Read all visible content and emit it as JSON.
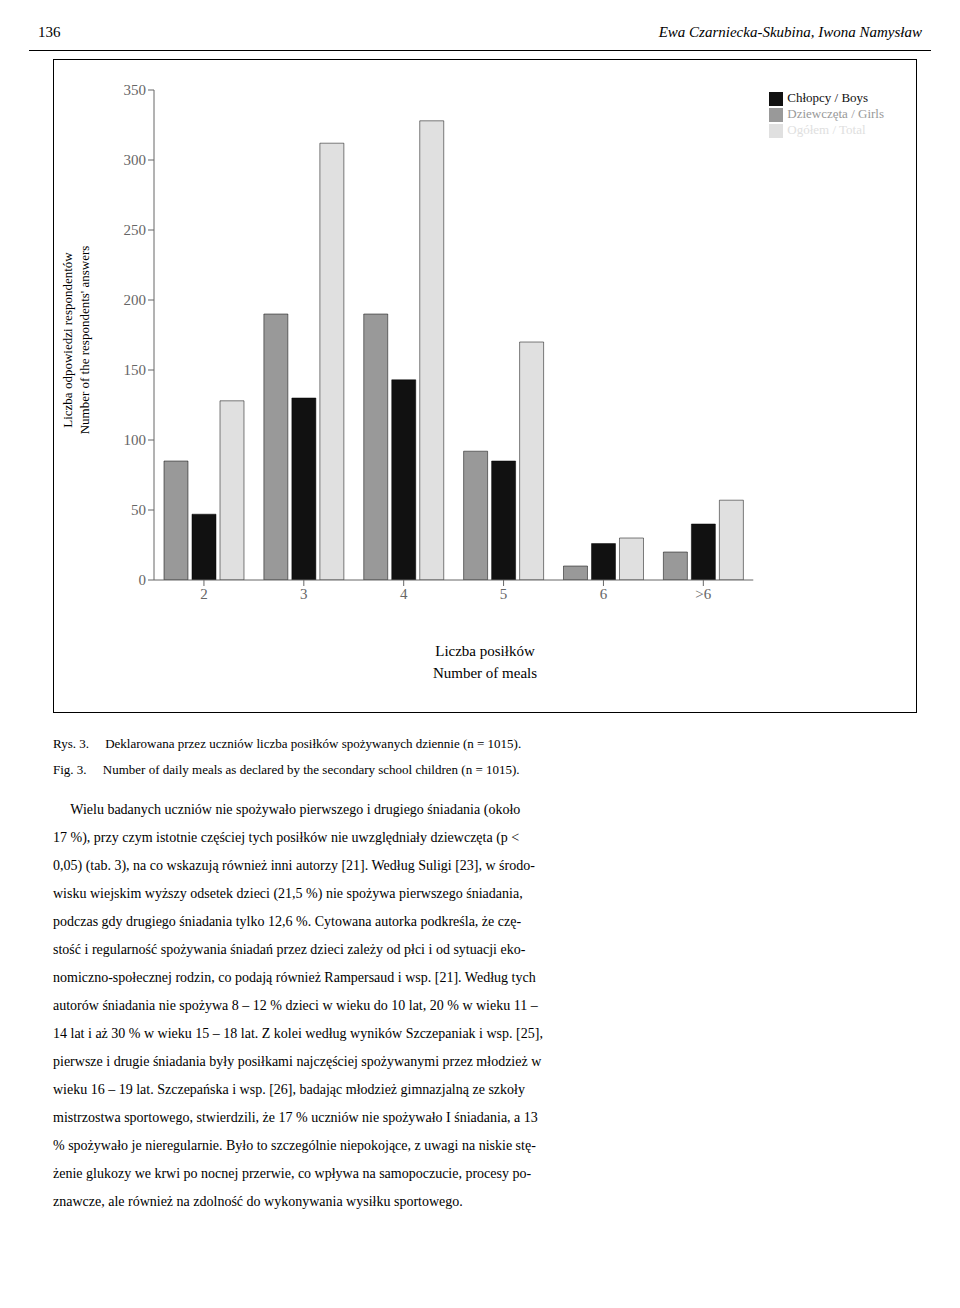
{
  "chart_data": {
    "type": "bar",
    "title": "Rys. 3.     Deklarowana przez uczniów liczba posiłków spożywanych dziennie (n = 1015).",
    "subtitle": "Fig. 3.     Number of daily meals as declared by the secondary school children (n = 1015).",
    "xlabel": [
      "Liczba posiłków",
      "Number of meals"
    ],
    "ylabel": [
      "Liczba odpowiedzi respondentów",
      "Number of the respondents' answers"
    ],
    "categories": [
      "2",
      "3",
      "4",
      "5",
      "6",
      ">6"
    ],
    "series": [
      {
        "name": "Dziewczęta / Girls",
        "color": "#999999",
        "values": [
          85,
          190,
          190,
          92,
          10,
          20
        ]
      },
      {
        "name": "Chłopcy / Boys",
        "color": "#111111",
        "values": [
          47,
          130,
          143,
          85,
          26,
          40
        ]
      },
      {
        "name": "Ogółem / Total",
        "color": "#e0e0e0",
        "values": [
          128,
          312,
          328,
          170,
          30,
          57
        ]
      }
    ],
    "ylim": [
      0,
      350
    ],
    "yticks": [
      0,
      50,
      100,
      150,
      200,
      250,
      300,
      350
    ],
    "grid": false,
    "legend": "upper right",
    "annotations": {
      "header": [
        "136",
        "Ewa Czarniecka-Skubina, Iwona Namysław"
      ],
      "body": [
        "     Wielu badanych uczniów nie spożywało pierwszego i drugiego śniadania (około",
        "17 %), przy czym istotnie częściej tych posiłków nie uwzględniały dziewczęta (p <",
        "0,05) (tab. 3), na co wskazują również inni autorzy [21]. Według Suligi [23], w środo-",
        "wisku wiejskim wyższy odsetek dzieci (21,5 %) nie spożywa pierwszego śniadania,",
        "podczas gdy drugiego śniadania tylko 12,6 %. Cytowana autorka podkreśla, że czę-",
        "stość i regularność spożywania śniadań przez dzieci zależy od płci i od sytuacji eko-",
        "nomiczno-społecznej rodzin, co podają również Rampersaud i wsp. [21]. Według tych",
        "autorów śniadania nie spożywa 8 – 12 % dzieci w wieku do 10 lat, 20 % w wieku 11 –",
        "14 lat i aż 30 % w wieku 15 – 18 lat. Z kolei według wyników Szczepaniak i wsp. [25],",
        "pierwsze i drugie śniadania były posiłkami najczęściej spożywanymi przez młodzież w",
        "wieku 16 – 19 lat. Szczepańska i wsp. [26], badając młodzież gimnazjalną ze szkoły",
        "mistrzostwa sportowego, stwierdzili, że 17 % uczniów nie spożywało I śniadania, a 13",
        "% spożywało je nieregularnie. Było to szczególnie niepokojące, z uwagi na niskie stę-",
        "żenie glukozy we krwi po nocnej przerwie, co wpływa na samopoczucie, procesy po-",
        "znawcze, ale również na zdolność do wykonywania wysiłku sportowego."
      ]
    }
  }
}
